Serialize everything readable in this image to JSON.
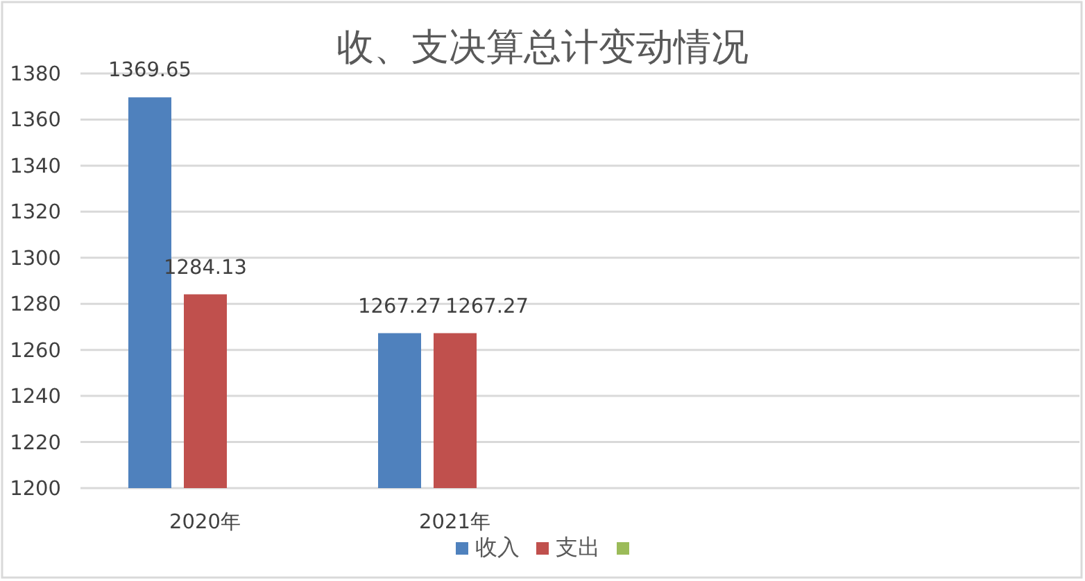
{
  "chart_data": {
    "type": "bar",
    "title": "收、支决算总计变动情况",
    "categories": [
      "2020年",
      "2021年",
      null,
      null
    ],
    "series": [
      {
        "name": "收入",
        "color": "#4f81bd",
        "values": [
          1369.65,
          1267.27,
          null,
          null
        ]
      },
      {
        "name": "支出",
        "color": "#c0504d",
        "values": [
          1284.13,
          1267.27,
          null,
          null
        ]
      },
      {
        "color": "#9bbb59",
        "values": [
          null,
          null,
          null,
          null
        ]
      }
    ],
    "ylim": [
      1200,
      1380
    ],
    "yticks": [
      1200,
      1220,
      1240,
      1260,
      1280,
      1300,
      1320,
      1340,
      1360,
      1380
    ],
    "grid": "y",
    "legend": "bottom",
    "data_labels": true
  }
}
